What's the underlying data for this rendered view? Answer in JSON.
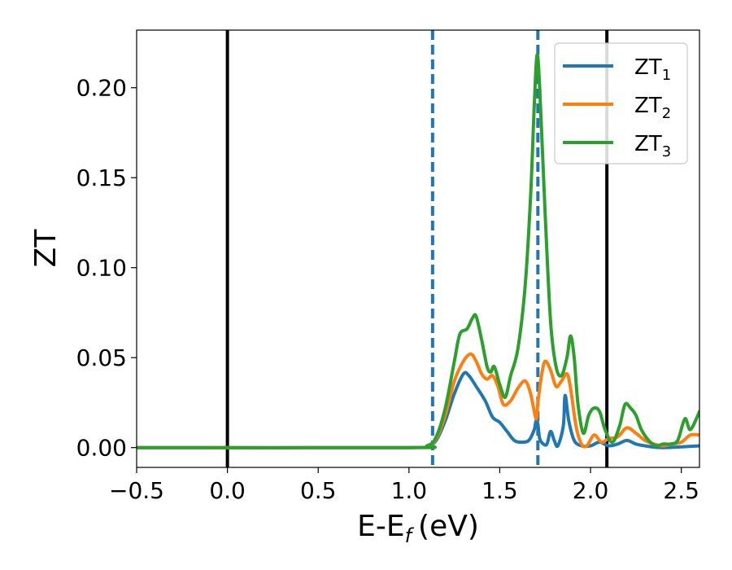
{
  "chart_data": {
    "type": "line",
    "xlabel": {
      "main": "E-E",
      "sub": "f",
      "unit": "(eV)"
    },
    "ylabel": "ZT",
    "xlim": [
      -0.5,
      2.6
    ],
    "ylim": [
      -0.011,
      0.232
    ],
    "xticks": [
      -0.5,
      0.0,
      0.5,
      1.0,
      1.5,
      2.0,
      2.5
    ],
    "xtick_labels": [
      "−0.5",
      "0.0",
      "0.5",
      "1.0",
      "1.5",
      "2.0",
      "2.5"
    ],
    "yticks": [
      0.0,
      0.05,
      0.1,
      0.15,
      0.2
    ],
    "ytick_labels": [
      "0.00",
      "0.05",
      "0.10",
      "0.15",
      "0.20"
    ],
    "grid": false,
    "legend_position": "top-right",
    "vlines": [
      {
        "x": 0.0,
        "style": "solid",
        "color": "#000000"
      },
      {
        "x": 2.09,
        "style": "solid",
        "color": "#000000"
      },
      {
        "x": 1.13,
        "style": "dashed",
        "color": "#1f77b4"
      },
      {
        "x": 1.71,
        "style": "dashed",
        "color": "#1f77b4"
      }
    ],
    "series": [
      {
        "name": "ZT",
        "sub": "1",
        "color": "#1f77b4",
        "points": [
          [
            -0.5,
            0
          ],
          [
            1.0,
            0
          ],
          [
            1.1,
            0.001
          ],
          [
            1.15,
            0.004
          ],
          [
            1.2,
            0.015
          ],
          [
            1.25,
            0.03
          ],
          [
            1.3,
            0.041
          ],
          [
            1.33,
            0.04
          ],
          [
            1.37,
            0.034
          ],
          [
            1.42,
            0.026
          ],
          [
            1.46,
            0.017
          ],
          [
            1.5,
            0.014
          ],
          [
            1.54,
            0.009
          ],
          [
            1.58,
            0.004
          ],
          [
            1.62,
            0.003
          ],
          [
            1.66,
            0.004
          ],
          [
            1.69,
            0.01
          ],
          [
            1.7,
            0.015
          ],
          [
            1.71,
            0.013
          ],
          [
            1.72,
            0.005
          ],
          [
            1.74,
            0.002
          ],
          [
            1.76,
            0.002
          ],
          [
            1.78,
            0.009
          ],
          [
            1.8,
            0.004
          ],
          [
            1.82,
            0.001
          ],
          [
            1.85,
            0.012
          ],
          [
            1.86,
            0.029
          ],
          [
            1.88,
            0.015
          ],
          [
            1.91,
            0.004
          ],
          [
            1.95,
            0.001
          ],
          [
            2.0,
            0.001
          ],
          [
            2.05,
            0.003
          ],
          [
            2.1,
            0.001
          ],
          [
            2.15,
            0.002
          ],
          [
            2.2,
            0.004
          ],
          [
            2.25,
            0.002
          ],
          [
            2.3,
            0.001
          ],
          [
            2.4,
            0
          ],
          [
            2.6,
            0.001
          ]
        ]
      },
      {
        "name": "ZT",
        "sub": "2",
        "color": "#ff7f0e",
        "points": [
          [
            -0.5,
            0
          ],
          [
            1.0,
            0
          ],
          [
            1.1,
            0.001
          ],
          [
            1.15,
            0.005
          ],
          [
            1.2,
            0.018
          ],
          [
            1.25,
            0.037
          ],
          [
            1.3,
            0.048
          ],
          [
            1.34,
            0.052
          ],
          [
            1.37,
            0.048
          ],
          [
            1.4,
            0.041
          ],
          [
            1.43,
            0.038
          ],
          [
            1.46,
            0.04
          ],
          [
            1.49,
            0.034
          ],
          [
            1.52,
            0.024
          ],
          [
            1.56,
            0.026
          ],
          [
            1.6,
            0.033
          ],
          [
            1.64,
            0.037
          ],
          [
            1.67,
            0.03
          ],
          [
            1.7,
            0.016
          ],
          [
            1.71,
            0.025
          ],
          [
            1.73,
            0.04
          ],
          [
            1.75,
            0.048
          ],
          [
            1.78,
            0.043
          ],
          [
            1.81,
            0.034
          ],
          [
            1.84,
            0.037
          ],
          [
            1.87,
            0.041
          ],
          [
            1.89,
            0.033
          ],
          [
            1.92,
            0.012
          ],
          [
            1.95,
            0.002
          ],
          [
            1.98,
            0.001
          ],
          [
            2.02,
            0.007
          ],
          [
            2.06,
            0.003
          ],
          [
            2.1,
            0.005
          ],
          [
            2.15,
            0.006
          ],
          [
            2.2,
            0.011
          ],
          [
            2.25,
            0.008
          ],
          [
            2.3,
            0.004
          ],
          [
            2.35,
            0.002
          ],
          [
            2.4,
            0.001
          ],
          [
            2.45,
            0.002
          ],
          [
            2.5,
            0.003
          ],
          [
            2.55,
            0.007
          ],
          [
            2.6,
            0.007
          ]
        ]
      },
      {
        "name": "ZT",
        "sub": "3",
        "color": "#2ca02c",
        "points": [
          [
            -0.5,
            0
          ],
          [
            1.0,
            0
          ],
          [
            1.1,
            0.001
          ],
          [
            1.15,
            0.006
          ],
          [
            1.2,
            0.022
          ],
          [
            1.25,
            0.048
          ],
          [
            1.28,
            0.063
          ],
          [
            1.32,
            0.066
          ],
          [
            1.35,
            0.072
          ],
          [
            1.37,
            0.073
          ],
          [
            1.4,
            0.06
          ],
          [
            1.43,
            0.045
          ],
          [
            1.45,
            0.042
          ],
          [
            1.47,
            0.045
          ],
          [
            1.5,
            0.035
          ],
          [
            1.53,
            0.028
          ],
          [
            1.56,
            0.04
          ],
          [
            1.6,
            0.055
          ],
          [
            1.64,
            0.09
          ],
          [
            1.67,
            0.14
          ],
          [
            1.69,
            0.19
          ],
          [
            1.705,
            0.218
          ],
          [
            1.72,
            0.2
          ],
          [
            1.75,
            0.13
          ],
          [
            1.78,
            0.07
          ],
          [
            1.81,
            0.045
          ],
          [
            1.84,
            0.04
          ],
          [
            1.87,
            0.05
          ],
          [
            1.89,
            0.062
          ],
          [
            1.91,
            0.05
          ],
          [
            1.93,
            0.025
          ],
          [
            1.96,
            0.008
          ],
          [
            1.99,
            0.018
          ],
          [
            2.02,
            0.022
          ],
          [
            2.05,
            0.02
          ],
          [
            2.08,
            0.01
          ],
          [
            2.12,
            0.003
          ],
          [
            2.16,
            0.012
          ],
          [
            2.19,
            0.024
          ],
          [
            2.22,
            0.022
          ],
          [
            2.25,
            0.018
          ],
          [
            2.28,
            0.01
          ],
          [
            2.32,
            0.004
          ],
          [
            2.36,
            0.001
          ],
          [
            2.4,
            0.002
          ],
          [
            2.44,
            0.002
          ],
          [
            2.48,
            0.004
          ],
          [
            2.52,
            0.016
          ],
          [
            2.55,
            0.01
          ],
          [
            2.6,
            0.02
          ]
        ]
      }
    ]
  }
}
